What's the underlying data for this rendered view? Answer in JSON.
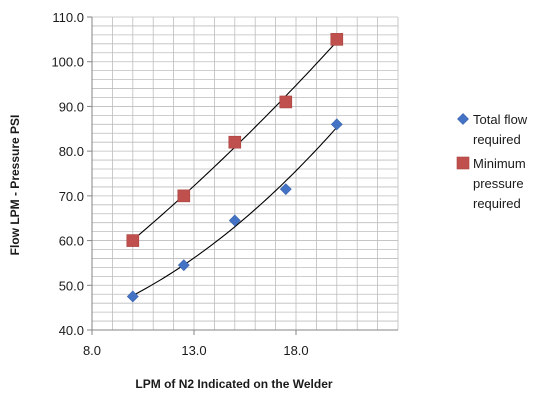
{
  "chart_data": {
    "type": "scatter",
    "title": "",
    "xlabel": "LPM of N2  Indicated on the Welder",
    "ylabel": "Flow LPM - Pressure PSI",
    "xlim": [
      8.0,
      23.0
    ],
    "ylim": [
      40.0,
      110.0
    ],
    "x_ticks": [
      "8.0",
      "13.0",
      "18.0"
    ],
    "y_ticks": [
      "40.0",
      "50.0",
      "60.0",
      "70.0",
      "80.0",
      "90.0",
      "100.0",
      "110.0"
    ],
    "grid": true,
    "legend_position": "right",
    "trendline": "polynomial",
    "series": [
      {
        "name": "Total flow required",
        "marker": "diamond",
        "color": "#4472c4",
        "points": [
          {
            "x": 10.0,
            "y": 47.5
          },
          {
            "x": 12.5,
            "y": 54.5
          },
          {
            "x": 15.0,
            "y": 64.5
          },
          {
            "x": 17.5,
            "y": 71.5
          },
          {
            "x": 20.0,
            "y": 86.0
          }
        ]
      },
      {
        "name": "Minimum pressure required",
        "marker": "square",
        "color": "#c0504d",
        "points": [
          {
            "x": 10.0,
            "y": 60.0
          },
          {
            "x": 12.5,
            "y": 70.0
          },
          {
            "x": 15.0,
            "y": 82.0
          },
          {
            "x": 17.5,
            "y": 91.0
          },
          {
            "x": 20.0,
            "y": 105.0
          }
        ]
      }
    ]
  },
  "legend": {
    "items": [
      {
        "lines": [
          "Total flow",
          "required"
        ]
      },
      {
        "lines": [
          "Minimum",
          "pressure",
          "required"
        ]
      }
    ]
  }
}
